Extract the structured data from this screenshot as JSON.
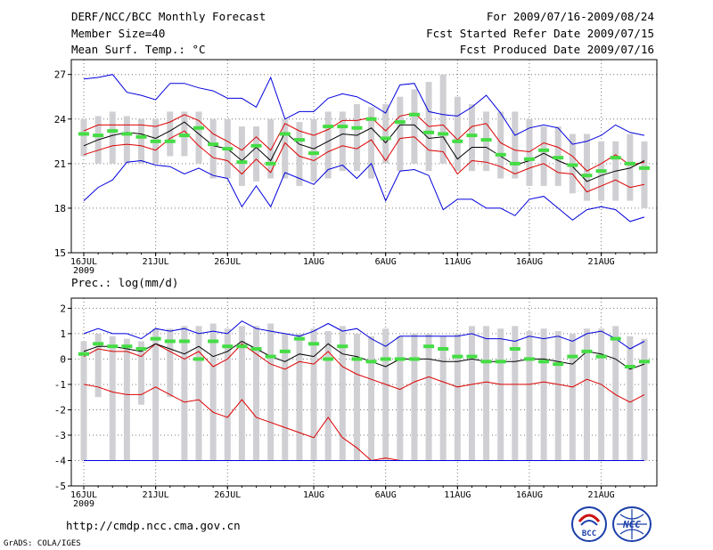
{
  "header": {
    "title": "DERF/NCC/BCC Monthly Forecast",
    "member": "Member Size=40",
    "variable": "Mean Surf. Temp.: °C",
    "period": "For 2009/07/16-2009/08/24",
    "start": "Fcst Started Refer Date 2009/07/15",
    "produced": "Fcst Produced Date 2009/07/16"
  },
  "footer": {
    "url": "http://cmdp.ncc.cma.gov.cn",
    "grads": "GrADS: COLA/IGES",
    "logo_bcc": "BCC",
    "logo_ncc": "NCC"
  },
  "colors": {
    "upper": "#0000dd",
    "mid": "#dd0000",
    "mean": "#000000",
    "obs": "#44dd44",
    "box": "#d0d0d4"
  },
  "chart_data": [
    {
      "type": "box-line",
      "title": "Mean Surf. Temp.: °C",
      "ylim": [
        15,
        28
      ],
      "yticks": [
        "15",
        "18",
        "21",
        "24",
        "27"
      ],
      "xticks": [
        "16JUL",
        "21JUL",
        "26JUL",
        "1AUG",
        "6AUG",
        "11AUG",
        "16AUG",
        "21AUG"
      ],
      "xtick_days": [
        1,
        6,
        11,
        17,
        22,
        27,
        32,
        37
      ],
      "year_label": "2009",
      "box_low": [
        21.5,
        21,
        21,
        21,
        21,
        21,
        21.5,
        21.5,
        21,
        20,
        20,
        19.5,
        19.8,
        20,
        20,
        19.5,
        19.8,
        20,
        20.5,
        20.5,
        20,
        21,
        20.5,
        21,
        20.5,
        21,
        20.5,
        20.5,
        20.5,
        20,
        20,
        19.5,
        19.5,
        19.5,
        19,
        18.5,
        18.5,
        18.5,
        18.5,
        18
      ],
      "box_high": [
        24,
        24.2,
        24.5,
        24.2,
        24,
        24,
        24.5,
        24.5,
        24.5,
        24,
        24,
        23.5,
        23.5,
        24,
        24,
        23.8,
        24,
        24.5,
        24.5,
        25,
        24.8,
        25,
        25.5,
        26,
        26.5,
        27,
        25.5,
        25,
        24.5,
        24.5,
        24.5,
        24,
        23.5,
        23.5,
        23,
        23,
        22.5,
        22.5,
        23,
        22.5
      ],
      "series": [
        {
          "name": "max",
          "color_key": "upper",
          "values": [
            26.7,
            26.8,
            27.0,
            25.8,
            25.6,
            25.3,
            26.4,
            26.4,
            26.1,
            25.9,
            25.4,
            25.4,
            24.8,
            26.8,
            24.0,
            24.5,
            24.5,
            25.4,
            25.7,
            25.5,
            25.0,
            24.4,
            26.3,
            26.4,
            24.5,
            24.3,
            24.2,
            24.8,
            25.6,
            24.4,
            22.9,
            23.4,
            23.6,
            23.4,
            22.3,
            22.5,
            22.9,
            23.6,
            23.1,
            22.9
          ]
        },
        {
          "name": "upper",
          "color_key": "mid",
          "values": [
            23.2,
            23.6,
            23.6,
            23.6,
            23.6,
            23.5,
            23.8,
            24.3,
            23.9,
            23.0,
            22.5,
            21.9,
            22.8,
            21.9,
            23.7,
            23.2,
            22.9,
            23.3,
            23.9,
            23.9,
            24.1,
            23.2,
            24.2,
            24.4,
            23.5,
            23.6,
            22.6,
            23.5,
            23.7,
            22.4,
            21.9,
            21.8,
            22.4,
            22.1,
            21.5,
            20.5,
            21.0,
            21.6,
            20.9,
            21.1
          ]
        },
        {
          "name": "mean",
          "color_key": "mean",
          "values": [
            22.2,
            22.6,
            22.9,
            23.1,
            23.0,
            22.7,
            23.2,
            23.8,
            23.0,
            22.2,
            22.0,
            21.2,
            22.1,
            21.2,
            23.1,
            22.3,
            22.0,
            22.5,
            23.0,
            22.9,
            23.4,
            22.4,
            23.6,
            23.6,
            22.7,
            22.8,
            21.3,
            22.1,
            22.1,
            21.5,
            20.9,
            21.2,
            21.7,
            21.2,
            20.8,
            19.8,
            20.2,
            20.5,
            20.7,
            21.2
          ]
        },
        {
          "name": "lower",
          "color_key": "mid",
          "values": [
            21.6,
            21.9,
            22.2,
            22.3,
            22.2,
            21.9,
            22.7,
            23.2,
            22.2,
            21.4,
            21.2,
            20.3,
            21.3,
            20.4,
            22.4,
            21.5,
            21.2,
            21.8,
            22.2,
            22.0,
            22.6,
            21.2,
            22.7,
            22.8,
            21.9,
            21.8,
            20.3,
            21.2,
            21.1,
            20.8,
            20.3,
            20.7,
            21.0,
            20.4,
            20.3,
            19.1,
            19.5,
            19.9,
            19.4,
            19.6
          ]
        },
        {
          "name": "min",
          "color_key": "upper",
          "values": [
            18.5,
            19.4,
            19.9,
            21.1,
            21.2,
            20.9,
            20.8,
            20.3,
            20.7,
            20.2,
            20.0,
            18.1,
            19.5,
            18.1,
            20.4,
            20.0,
            19.6,
            20.6,
            20.9,
            20.0,
            21.0,
            18.5,
            20.5,
            20.6,
            20.2,
            17.9,
            18.6,
            18.6,
            18.0,
            18.0,
            17.5,
            18.6,
            18.8,
            18.0,
            17.2,
            17.9,
            18.1,
            17.9,
            17.1,
            17.4
          ]
        },
        {
          "name": "obs",
          "color_key": "obs",
          "values": [
            23.0,
            22.9,
            23.2,
            23.0,
            22.8,
            22.5,
            22.5,
            22.9,
            23.4,
            22.3,
            22.0,
            21.1,
            22.2,
            21.0,
            23.0,
            22.6,
            21.7,
            23.5,
            23.5,
            23.4,
            24.0,
            22.7,
            23.8,
            24.3,
            23.1,
            23.0,
            22.5,
            22.9,
            22.6,
            21.6,
            21.0,
            21.3,
            21.9,
            21.4,
            20.9,
            20.2,
            20.5,
            21.4,
            21.0,
            20.7
          ]
        }
      ]
    },
    {
      "type": "box-line",
      "title": "Prec.: log(mm/d)",
      "ylim": [
        -5,
        2.4
      ],
      "yticks": [
        "-5",
        "-4",
        "-3",
        "-2",
        "-1",
        "0",
        "1",
        "2"
      ],
      "xticks": [
        "16JUL",
        "21JUL",
        "26JUL",
        "1AUG",
        "6AUG",
        "11AUG",
        "16AUG",
        "21AUG"
      ],
      "xtick_days": [
        1,
        6,
        11,
        17,
        22,
        27,
        32,
        37
      ],
      "year_label": "2009",
      "box_low": [
        -4,
        -1.5,
        -4,
        -4,
        -1.8,
        -4,
        -1.5,
        -4,
        -4,
        -4,
        -4,
        -4,
        -4,
        -4,
        -4,
        -4,
        -4,
        -4,
        -4,
        -4,
        -4,
        -4,
        -4,
        -4,
        -4,
        -4,
        -4,
        -4,
        -4,
        -4,
        -4,
        -4,
        -4,
        -4,
        -4,
        -4,
        -4,
        -4,
        -4,
        -4
      ],
      "box_high": [
        0.7,
        1.0,
        0.9,
        0.8,
        0.7,
        1.2,
        1.2,
        1.3,
        1.3,
        1.4,
        1.2,
        1.3,
        1.3,
        1.4,
        1.0,
        1.0,
        1.2,
        1.1,
        1.3,
        1.0,
        0.9,
        1.2,
        0.9,
        1.0,
        1.0,
        0.9,
        1.0,
        1.3,
        1.3,
        1.2,
        1.3,
        1.1,
        1.2,
        1.1,
        1.0,
        1.2,
        1.2,
        1.3,
        0.9,
        0.8
      ],
      "series": [
        {
          "name": "max",
          "color_key": "upper",
          "values": [
            1.0,
            1.2,
            1.0,
            1.0,
            0.8,
            1.2,
            1.1,
            1.2,
            1.0,
            1.1,
            1.0,
            1.5,
            1.2,
            1.1,
            1.0,
            0.9,
            1.1,
            1.4,
            1.1,
            1.2,
            0.8,
            0.5,
            0.9,
            0.9,
            0.9,
            0.9,
            0.9,
            1.0,
            0.8,
            0.8,
            0.7,
            0.9,
            0.8,
            0.9,
            0.7,
            1.0,
            1.1,
            0.8,
            0.4,
            0.7
          ]
        },
        {
          "name": "upper",
          "color_key": "mid",
          "values": [
            0.1,
            0.4,
            0.3,
            0.3,
            0.1,
            0.6,
            0.3,
            0.0,
            0.3,
            -0.3,
            0.0,
            0.6,
            0.2,
            -0.2,
            -0.4,
            -0.1,
            -0.2,
            0.3,
            -0.3,
            -0.6,
            -0.8,
            -1.0,
            -1.2,
            -0.9,
            -0.7,
            -0.9,
            -1.1,
            -1.0,
            -0.9,
            -1.0,
            -1.0,
            -1.0,
            -0.9,
            -1.0,
            -1.1,
            -0.8,
            -1.0,
            -1.4,
            -1.7,
            -1.4
          ]
        },
        {
          "name": "mean",
          "color_key": "mean",
          "values": [
            0.3,
            0.5,
            0.5,
            0.4,
            0.3,
            0.6,
            0.4,
            0.2,
            0.5,
            0.1,
            0.3,
            0.7,
            0.4,
            0.1,
            -0.1,
            0.2,
            0.1,
            0.6,
            0.2,
            0.1,
            -0.1,
            -0.3,
            0.0,
            0.0,
            0.0,
            -0.1,
            -0.1,
            0.0,
            -0.1,
            -0.1,
            -0.1,
            0.0,
            0.0,
            -0.1,
            -0.2,
            0.3,
            0.2,
            0.0,
            -0.4,
            -0.2
          ]
        },
        {
          "name": "lower",
          "color_key": "mid",
          "values": [
            -1.0,
            -1.1,
            -1.3,
            -1.4,
            -1.4,
            -1.1,
            -1.4,
            -1.7,
            -1.6,
            -2.1,
            -2.3,
            -1.6,
            -2.3,
            -2.5,
            -2.7,
            -2.9,
            -3.1,
            -2.3,
            -3.1,
            -3.5,
            -4.0,
            -3.9,
            -4.0,
            -4.0,
            -4.0,
            -4.0,
            -4.0,
            -4.0,
            -4.0,
            -4.0,
            -4.0,
            -4.0,
            -4.0,
            -4.0,
            -4.0,
            -4.0,
            -4.0,
            -4.0,
            -4.0,
            -4.0
          ]
        },
        {
          "name": "min",
          "color_key": "upper",
          "values": [
            -4,
            -4,
            -4,
            -4,
            -4,
            -4,
            -4,
            -4,
            -4,
            -4,
            -4,
            -4,
            -4,
            -4,
            -4,
            -4,
            -4,
            -4,
            -4,
            -4,
            -4,
            -4,
            -4,
            -4,
            -4,
            -4,
            -4,
            -4,
            -4,
            -4,
            -4,
            -4,
            -4,
            -4,
            -4,
            -4,
            -4,
            -4,
            -4,
            -4
          ]
        },
        {
          "name": "obs",
          "color_key": "obs",
          "values": [
            0.2,
            0.6,
            0.5,
            0.5,
            0.4,
            0.8,
            0.7,
            0.7,
            0.0,
            0.7,
            0.5,
            0.5,
            0.4,
            0.1,
            0.3,
            0.8,
            0.6,
            0.0,
            0.5,
            0.0,
            -0.1,
            0.0,
            0.0,
            0.0,
            0.5,
            0.4,
            0.1,
            0.1,
            -0.1,
            -0.1,
            0.4,
            0.0,
            -0.1,
            -0.2,
            0.1,
            0.3,
            0.1,
            0.8,
            -0.3,
            -0.1
          ]
        }
      ]
    }
  ]
}
